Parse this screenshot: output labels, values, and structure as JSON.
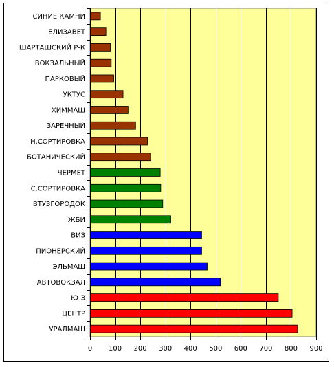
{
  "chart_data": {
    "type": "bar",
    "orientation": "horizontal",
    "title": "",
    "xlabel": "",
    "ylabel": "",
    "xlim": [
      0,
      900
    ],
    "xticks": [
      0,
      100,
      200,
      300,
      400,
      500,
      600,
      700,
      800,
      900
    ],
    "grid": true,
    "legend": "none",
    "plot_background": "#ffff99",
    "categories": [
      "СИНИЕ КАМНИ",
      "ЕЛИЗАВЕТ",
      "ШАРТАШСКИЙ Р-К",
      "ВОКЗАЛЬНЫЙ",
      "ПАРКОВЫЙ",
      "УКТУС",
      "ХИММАШ",
      "ЗАРЕЧНЫЙ",
      "Н.СОРТИРОВКА",
      "БОТАНИЧЕСКИЙ",
      "ЧЕРМЕТ",
      "С.СОРТИРОВКА",
      "ВТУЗГОРОДОК",
      "ЖБИ",
      "ВИЗ",
      "ПИОНЕРСКИЙ",
      "ЭЛЬМАШ",
      "АВТОВОКЗАЛ",
      "Ю-З",
      "ЦЕНТР",
      "УРАЛМАШ"
    ],
    "values": [
      40,
      62,
      80,
      83,
      93,
      130,
      150,
      180,
      228,
      240,
      278,
      280,
      288,
      320,
      443,
      443,
      465,
      518,
      748,
      803,
      825
    ],
    "colors": [
      "#993300",
      "#993300",
      "#993300",
      "#993300",
      "#993300",
      "#993300",
      "#993300",
      "#993300",
      "#993300",
      "#993300",
      "#008000",
      "#008000",
      "#008000",
      "#008000",
      "#0000ff",
      "#0000ff",
      "#0000ff",
      "#0000ff",
      "#ff0000",
      "#ff0000",
      "#ff0000"
    ]
  }
}
